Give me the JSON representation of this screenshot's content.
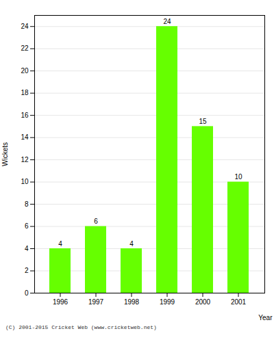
{
  "chart_data": {
    "type": "bar",
    "categories": [
      "1996",
      "1997",
      "1998",
      "1999",
      "2000",
      "2001"
    ],
    "values": [
      4,
      6,
      4,
      24,
      15,
      10
    ],
    "color": "#66ff00",
    "xlabel": "Year",
    "ylabel": "Wickets",
    "ylim": [
      0,
      25
    ],
    "yticks": [
      0,
      2,
      4,
      6,
      8,
      10,
      12,
      14,
      16,
      18,
      20,
      22,
      24
    ],
    "grid": true,
    "data_labels": true,
    "annotations": [
      "(C) 2001-2015 Cricket Web (www.cricketweb.net)"
    ]
  }
}
